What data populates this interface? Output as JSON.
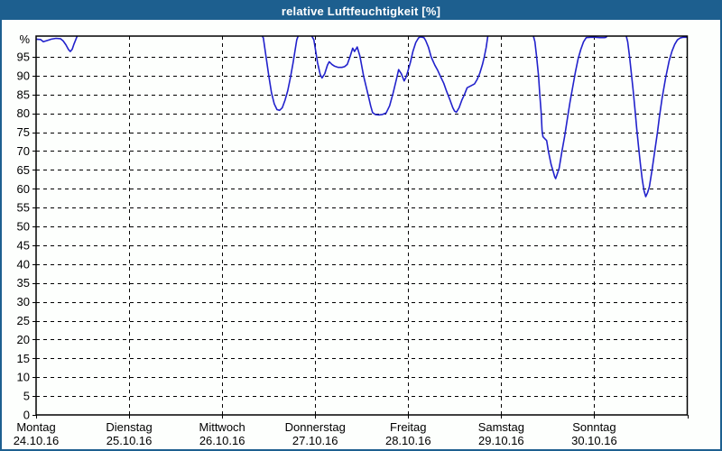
{
  "window": {
    "title": "relative Luftfeuchtigkeit [%]"
  },
  "colors": {
    "titlebar_bg": "#1d5f8f",
    "titlebar_text": "#ffffff",
    "window_border": "#1d5f8f",
    "plot_background": "#fdfffd",
    "plot_frame": "#000000",
    "grid": "#000000",
    "series_line": "#2222cc",
    "label_text": "#000000"
  },
  "chart_data": {
    "type": "line",
    "title": "relative Luftfeuchtigkeit [%]",
    "y_unit_label": "%",
    "ylim": [
      0,
      100.5
    ],
    "clip_above": 100.5,
    "y_ticks": [
      "0",
      "5",
      "10",
      "15",
      "20",
      "25",
      "30",
      "35",
      "40",
      "45",
      "50",
      "55",
      "60",
      "65",
      "70",
      "75",
      "80",
      "85",
      "90",
      "95"
    ],
    "y_tick_step": 5,
    "grid": {
      "horizontal": "dashed every 5 %",
      "vertical": "dashed at each day boundary",
      "style": "1px dashed black"
    },
    "legend": "none",
    "x_range_days": [
      0,
      7
    ],
    "x_days": [
      {
        "name": "Montag",
        "date": "24.10.16"
      },
      {
        "name": "Dienstag",
        "date": "25.10.16"
      },
      {
        "name": "Mittwoch",
        "date": "26.10.16"
      },
      {
        "name": "Donnerstag",
        "date": "27.10.16"
      },
      {
        "name": "Freitag",
        "date": "28.10.16"
      },
      {
        "name": "Samstag",
        "date": "29.10.16"
      },
      {
        "name": "Sonntag",
        "date": "30.10.16"
      }
    ],
    "series": [
      {
        "name": "relative Luftfeuchtigkeit",
        "color": "#2222cc",
        "x_unit": "days since Montag 24.10.16 00:00",
        "y_unit": "percent",
        "points": [
          [
            0,
            99.7
          ],
          [
            0.048,
            99.6
          ],
          [
            0.078,
            99.0
          ],
          [
            0.116,
            99.3
          ],
          [
            0.165,
            99.7
          ],
          [
            0.213,
            99.9
          ],
          [
            0.262,
            99.8
          ],
          [
            0.291,
            99.2
          ],
          [
            0.32,
            98.2
          ],
          [
            0.349,
            96.9
          ],
          [
            0.368,
            96.4
          ],
          [
            0.388,
            97.0
          ],
          [
            0.407,
            98.4
          ],
          [
            0.427,
            99.6
          ],
          [
            0.446,
            100.8
          ],
          [
            2.424,
            100.8
          ],
          [
            2.443,
            100.0
          ],
          [
            2.472,
            95.0
          ],
          [
            2.501,
            90.0
          ],
          [
            2.53,
            85.5
          ],
          [
            2.56,
            82.5
          ],
          [
            2.589,
            81.0
          ],
          [
            2.618,
            80.8
          ],
          [
            2.647,
            81.5
          ],
          [
            2.676,
            83.5
          ],
          [
            2.705,
            86.0
          ],
          [
            2.734,
            89.5
          ],
          [
            2.763,
            93.5
          ],
          [
            2.783,
            96.5
          ],
          [
            2.802,
            99.5
          ],
          [
            2.821,
            100.8
          ],
          [
            2.957,
            100.8
          ],
          [
            2.986,
            99.5
          ],
          [
            3.006,
            96.5
          ],
          [
            3.025,
            93.5
          ],
          [
            3.054,
            90.3
          ],
          [
            3.074,
            89.4
          ],
          [
            3.103,
            90.5
          ],
          [
            3.132,
            92.8
          ],
          [
            3.151,
            93.7
          ],
          [
            3.18,
            93.0
          ],
          [
            3.209,
            92.5
          ],
          [
            3.248,
            92.2
          ],
          [
            3.287,
            92.2
          ],
          [
            3.316,
            92.4
          ],
          [
            3.345,
            93.0
          ],
          [
            3.374,
            95.0
          ],
          [
            3.403,
            97.3
          ],
          [
            3.423,
            96.4
          ],
          [
            3.452,
            97.6
          ],
          [
            3.481,
            95.2
          ],
          [
            3.52,
            90.0
          ],
          [
            3.568,
            85.0
          ],
          [
            3.597,
            82.0
          ],
          [
            3.617,
            80.2
          ],
          [
            3.646,
            79.7
          ],
          [
            3.684,
            79.6
          ],
          [
            3.723,
            79.7
          ],
          [
            3.762,
            80.1
          ],
          [
            3.8,
            82.0
          ],
          [
            3.839,
            85.5
          ],
          [
            3.878,
            89.5
          ],
          [
            3.897,
            91.6
          ],
          [
            3.926,
            90.5
          ],
          [
            3.956,
            88.6
          ],
          [
            3.975,
            89.5
          ],
          [
            3.994,
            91.0
          ],
          [
            4.023,
            93.5
          ],
          [
            4.052,
            96.5
          ],
          [
            4.082,
            98.8
          ],
          [
            4.111,
            100.0
          ],
          [
            4.13,
            100.3
          ],
          [
            4.169,
            100.1
          ],
          [
            4.188,
            99.3
          ],
          [
            4.218,
            97.5
          ],
          [
            4.247,
            95.0
          ],
          [
            4.286,
            92.8
          ],
          [
            4.315,
            91.5
          ],
          [
            4.344,
            90.0
          ],
          [
            4.382,
            88.0
          ],
          [
            4.411,
            86.0
          ],
          [
            4.45,
            83.5
          ],
          [
            4.479,
            81.5
          ],
          [
            4.499,
            80.6
          ],
          [
            4.518,
            80.3
          ],
          [
            4.547,
            81.5
          ],
          [
            4.576,
            83.5
          ],
          [
            4.605,
            85.0
          ],
          [
            4.634,
            86.8
          ],
          [
            4.673,
            87.3
          ],
          [
            4.712,
            87.8
          ],
          [
            4.741,
            89.0
          ],
          [
            4.77,
            90.7
          ],
          [
            4.799,
            93.0
          ],
          [
            4.818,
            95.0
          ],
          [
            4.838,
            97.5
          ],
          [
            4.858,
            100.8
          ],
          [
            5.343,
            100.8
          ],
          [
            5.362,
            99.0
          ],
          [
            5.381,
            95.0
          ],
          [
            5.401,
            90.0
          ],
          [
            5.415,
            85.0
          ],
          [
            5.43,
            80.0
          ],
          [
            5.439,
            75.5
          ],
          [
            5.449,
            73.8
          ],
          [
            5.468,
            73.3
          ],
          [
            5.488,
            72.8
          ],
          [
            5.507,
            70.0
          ],
          [
            5.536,
            66.5
          ],
          [
            5.556,
            64.8
          ],
          [
            5.575,
            63.2
          ],
          [
            5.585,
            62.7
          ],
          [
            5.604,
            64.0
          ],
          [
            5.623,
            65.5
          ],
          [
            5.653,
            70.0
          ],
          [
            5.682,
            74.0
          ],
          [
            5.711,
            78.5
          ],
          [
            5.74,
            83.0
          ],
          [
            5.769,
            87.0
          ],
          [
            5.798,
            91.0
          ],
          [
            5.827,
            94.5
          ],
          [
            5.856,
            97.0
          ],
          [
            5.885,
            99.0
          ],
          [
            5.914,
            100.1
          ],
          [
            5.963,
            100.2
          ],
          [
            6.011,
            100.2
          ],
          [
            6.06,
            100.1
          ],
          [
            6.108,
            100.1
          ],
          [
            6.128,
            100.2
          ],
          [
            6.147,
            100.8
          ],
          [
            6.341,
            100.8
          ],
          [
            6.36,
            99.0
          ],
          [
            6.38,
            95.0
          ],
          [
            6.399,
            90.5
          ],
          [
            6.419,
            86.0
          ],
          [
            6.438,
            81.0
          ],
          [
            6.457,
            76.0
          ],
          [
            6.477,
            71.0
          ],
          [
            6.496,
            66.5
          ],
          [
            6.516,
            62.5
          ],
          [
            6.535,
            59.5
          ],
          [
            6.554,
            57.9
          ],
          [
            6.574,
            59.0
          ],
          [
            6.593,
            60.5
          ],
          [
            6.622,
            65.0
          ],
          [
            6.651,
            70.0
          ],
          [
            6.68,
            75.0
          ],
          [
            6.7,
            79.0
          ],
          [
            6.729,
            84.0
          ],
          [
            6.768,
            89.5
          ],
          [
            6.806,
            94.0
          ],
          [
            6.836,
            96.5
          ],
          [
            6.865,
            98.3
          ],
          [
            6.894,
            99.5
          ],
          [
            6.923,
            100.0
          ],
          [
            6.952,
            100.2
          ],
          [
            6.991,
            100.2
          ]
        ]
      }
    ]
  }
}
